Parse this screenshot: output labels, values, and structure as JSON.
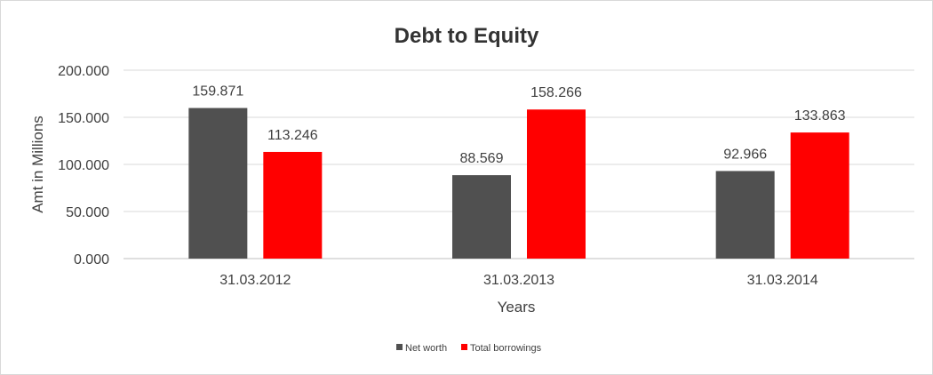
{
  "chart_data": {
    "type": "bar",
    "title": "Debt to Equity",
    "xlabel": "Years",
    "ylabel": "Amt in Millions",
    "categories": [
      "31.03.2012",
      "31.03.2013",
      "31.03.2014"
    ],
    "series": [
      {
        "name": "Net worth",
        "values": [
          159.871,
          88.569,
          92.966
        ],
        "color": "#505050"
      },
      {
        "name": "Total borrowings",
        "values": [
          113.246,
          158.266,
          133.863
        ],
        "color": "#ff0000"
      }
    ],
    "ylim": [
      0,
      200
    ],
    "yticks": [
      0,
      50,
      100,
      150,
      200
    ],
    "ytick_labels": [
      "0.000",
      "50.000",
      "100.000",
      "150.000",
      "200.000"
    ],
    "data_labels": [
      [
        "159.871",
        "88.569",
        "92.966"
      ],
      [
        "113.246",
        "158.266",
        "133.863"
      ]
    ],
    "grid": true,
    "legend_position": "bottom"
  }
}
